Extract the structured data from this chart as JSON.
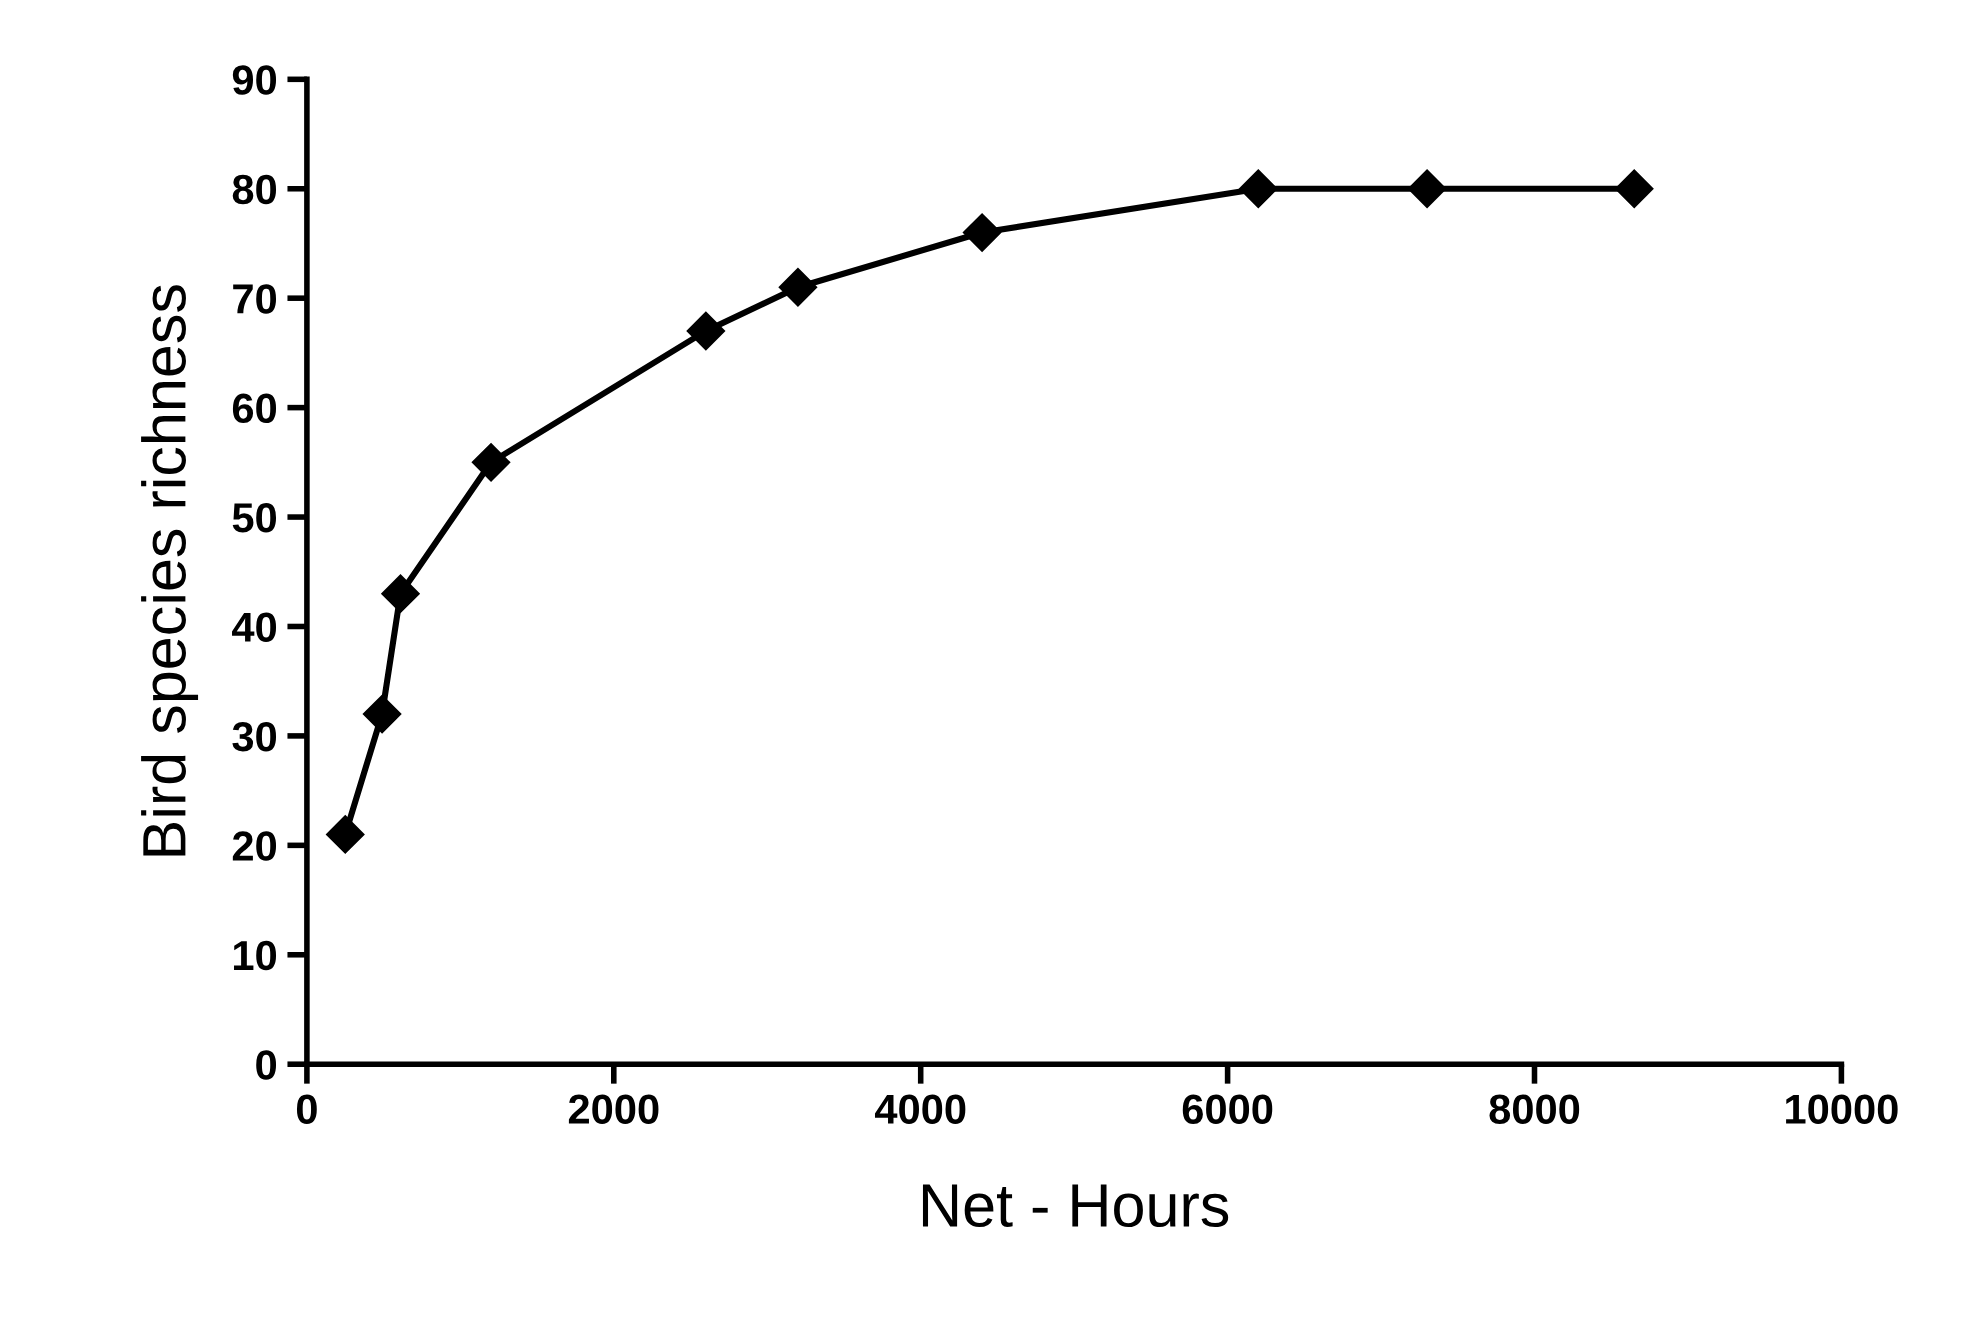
{
  "chart_data": {
    "type": "line",
    "xlabel": "Net - Hours",
    "ylabel": "Bird species richness",
    "x": [
      250,
      490,
      610,
      1200,
      2600,
      3200,
      4400,
      6200,
      7300,
      8650
    ],
    "series": [
      {
        "color": "#000000",
        "values": [
          21,
          32,
          43,
          55,
          67,
          71,
          76,
          80,
          80,
          80
        ]
      }
    ],
    "xlim": [
      0,
      10000
    ],
    "xticks": [
      0,
      2000,
      4000,
      6000,
      8000,
      10000
    ],
    "ylim": [
      0,
      90
    ],
    "yticks": [
      0,
      10,
      20,
      30,
      40,
      50,
      60,
      70,
      80,
      90
    ],
    "grid": false,
    "legend": false,
    "marker": "diamond",
    "line_style": "solid"
  }
}
